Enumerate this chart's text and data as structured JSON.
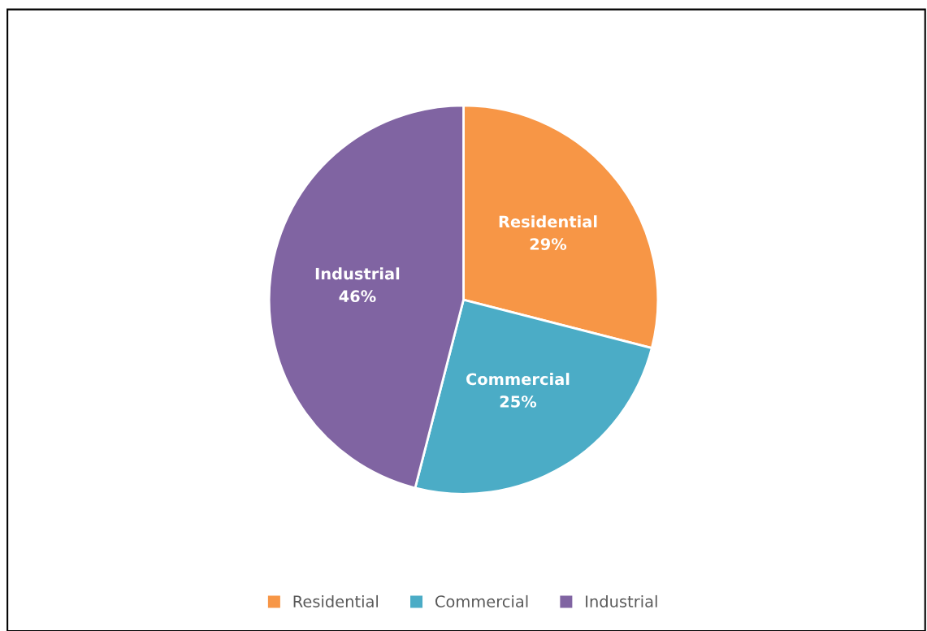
{
  "chart_data": {
    "type": "pie",
    "categories": [
      "Residential",
      "Commercial",
      "Industrial"
    ],
    "values": [
      29,
      25,
      46
    ],
    "colors": [
      "#f79646",
      "#4bacc6",
      "#8064a2"
    ],
    "value_labels": [
      "29%",
      "25%",
      "46%"
    ],
    "legend": "bottom"
  }
}
